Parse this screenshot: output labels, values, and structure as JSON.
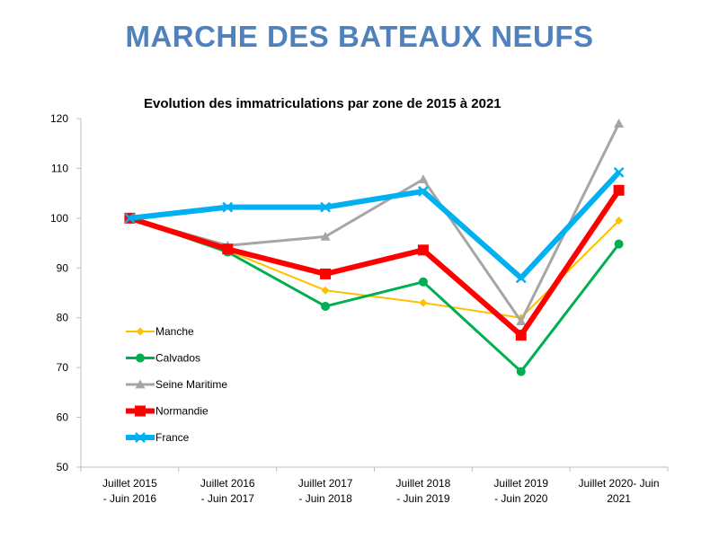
{
  "page_title": "MARCHE DES BATEAUX NEUFS",
  "chart_data": {
    "type": "line",
    "title": "Evolution des immatriculations par zone de 2015 à 2021",
    "categories": [
      [
        "Juillet 2015",
        "- Juin 2016"
      ],
      [
        "Juillet 2016",
        "- Juin 2017"
      ],
      [
        "Juillet 2017",
        "- Juin 2018"
      ],
      [
        "Juillet 2018",
        "- Juin 2019"
      ],
      [
        "Juillet 2019",
        "- Juin 2020"
      ],
      [
        "Juillet 2020- Juin",
        "2021"
      ]
    ],
    "ylim": [
      50,
      120
    ],
    "yticks": [
      50,
      60,
      70,
      80,
      90,
      100,
      110,
      120
    ],
    "grid": false,
    "legend_position": "inside-left",
    "series": [
      {
        "name": "Manche",
        "color": "#ffc000",
        "marker": "diamond",
        "width": 2,
        "values": [
          100,
          93.5,
          85.5,
          83,
          80,
          99.5
        ]
      },
      {
        "name": "Calvados",
        "color": "#00b050",
        "marker": "circle",
        "width": 3,
        "values": [
          100,
          93.2,
          82.3,
          87.2,
          69.2,
          94.8
        ]
      },
      {
        "name": "Seine Maritime",
        "color": "#a6a6a6",
        "marker": "triangle",
        "width": 3,
        "values": [
          100,
          94.5,
          96.3,
          107.8,
          79.3,
          119
        ]
      },
      {
        "name": "Normandie",
        "color": "#ff0000",
        "marker": "square",
        "width": 6,
        "values": [
          100,
          93.8,
          88.8,
          93.6,
          76.5,
          105.6
        ]
      },
      {
        "name": "France",
        "color": "#00b0f0",
        "marker": "x",
        "width": 6,
        "values": [
          100,
          102.2,
          102.2,
          105.4,
          88,
          109.2
        ]
      }
    ]
  }
}
